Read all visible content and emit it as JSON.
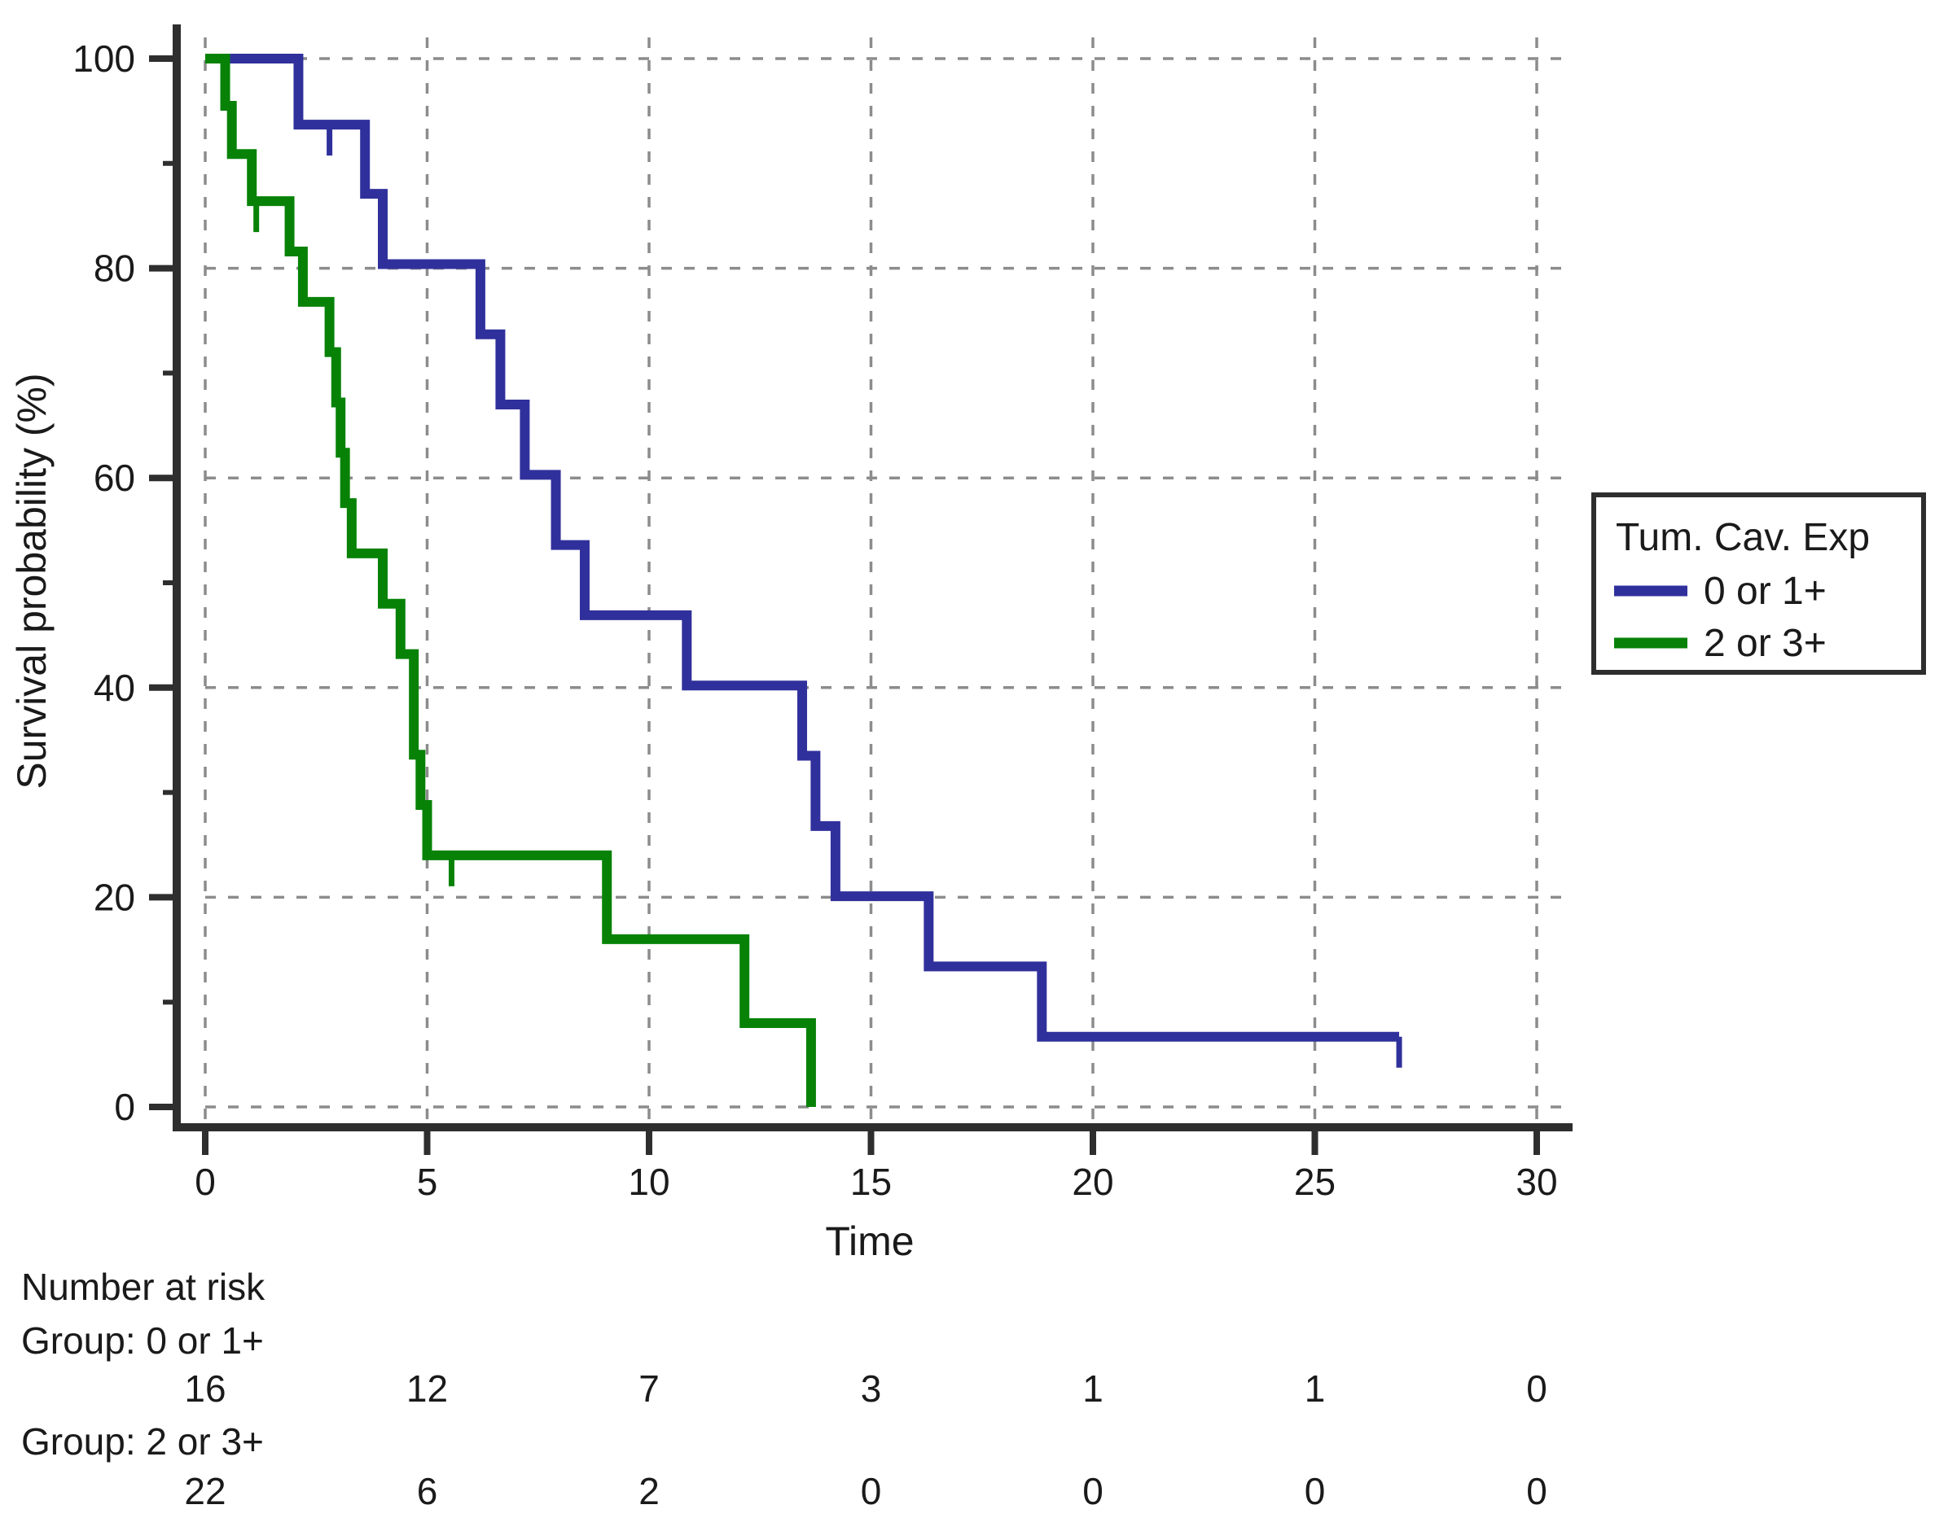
{
  "style": {
    "background": "#ffffff",
    "axis_color": "#2e2e2e",
    "grid_color": "#8c8c8c",
    "text_color": "#1a1a1a",
    "risk_label_color": "#2525ae",
    "legend_border_color": "#2e2e2e"
  },
  "chart_data": {
    "type": "line",
    "subtype": "kaplan-meier-step-curves",
    "title": "",
    "xlabel": "Time",
    "ylabel": "Survival probability (%)",
    "xlim": [
      0,
      30
    ],
    "ylim": [
      0,
      100
    ],
    "x_ticks": [
      0,
      5,
      10,
      15,
      20,
      25,
      30
    ],
    "y_ticks": [
      0,
      20,
      40,
      60,
      80,
      100
    ],
    "y_minor_ticks": [
      10,
      30,
      50,
      70,
      90
    ],
    "grid": true,
    "grid_style": "dashed",
    "legend": {
      "title": "Tum. Cav. Exp",
      "position": "right",
      "entries": [
        {
          "label": "0 or 1+",
          "color": "#30309c"
        },
        {
          "label": "2 or 3+",
          "color": "#078207"
        }
      ]
    },
    "series": [
      {
        "name": "0 or 1+",
        "color": "#30309c",
        "n_start": 16,
        "end_t": 26.9,
        "points": [
          [
            0,
            100
          ],
          [
            2.1,
            93.7
          ],
          [
            3.6,
            87.1
          ],
          [
            4.0,
            80.4
          ],
          [
            6.2,
            73.7
          ],
          [
            6.65,
            67.0
          ],
          [
            7.2,
            60.3
          ],
          [
            7.9,
            53.6
          ],
          [
            8.55,
            46.9
          ],
          [
            10.85,
            40.2
          ],
          [
            13.45,
            33.5
          ],
          [
            13.75,
            26.8
          ],
          [
            14.2,
            20.1
          ],
          [
            16.3,
            13.4
          ],
          [
            18.85,
            6.7
          ]
        ],
        "censors": [
          [
            2.8,
            93.7
          ],
          [
            26.9,
            6.7
          ]
        ]
      },
      {
        "name": "2 or 3+",
        "color": "#078207",
        "n_start": 22,
        "end_t": 13.65,
        "points": [
          [
            0,
            100
          ],
          [
            0.45,
            95.5
          ],
          [
            0.6,
            90.9
          ],
          [
            1.05,
            86.4
          ],
          [
            1.9,
            81.6
          ],
          [
            2.2,
            76.8
          ],
          [
            2.8,
            72.0
          ],
          [
            2.95,
            67.2
          ],
          [
            3.05,
            62.4
          ],
          [
            3.15,
            57.6
          ],
          [
            3.3,
            52.8
          ],
          [
            4.0,
            48.0
          ],
          [
            4.4,
            43.2
          ],
          [
            4.7,
            33.6
          ],
          [
            4.85,
            28.8
          ],
          [
            5.0,
            24.0
          ],
          [
            9.05,
            16.0
          ],
          [
            12.15,
            8.0
          ],
          [
            13.65,
            0
          ]
        ],
        "censors": [
          [
            1.15,
            86.4
          ],
          [
            5.55,
            24.0
          ]
        ]
      }
    ],
    "risk_table": {
      "header": "Number at risk",
      "times": [
        0,
        5,
        10,
        15,
        20,
        25,
        30
      ],
      "groups": [
        {
          "label": "Group: 0 or 1+",
          "counts": [
            16,
            12,
            7,
            3,
            1,
            1,
            0
          ]
        },
        {
          "label": "Group: 2 or 3+",
          "counts": [
            22,
            6,
            2,
            0,
            0,
            0,
            0
          ]
        }
      ]
    }
  }
}
